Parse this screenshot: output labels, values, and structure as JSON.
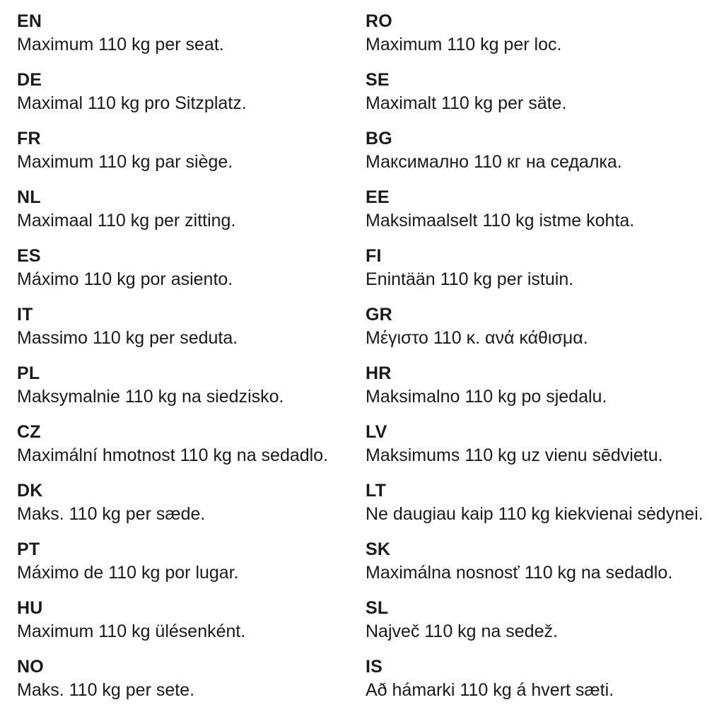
{
  "page": {
    "background_color": "#ffffff",
    "text_color": "#1a1a1a",
    "weight_value": "110 kg"
  },
  "columns": {
    "left": [
      {
        "code": "EN",
        "text": "Maximum 110 kg per seat."
      },
      {
        "code": "DE",
        "text": "Maximal 110 kg pro Sitzplatz."
      },
      {
        "code": "FR",
        "text": "Maximum 110 kg par siège."
      },
      {
        "code": "NL",
        "text": "Maximaal 110 kg per zitting."
      },
      {
        "code": "ES",
        "text": "Máximo 110 kg por asiento."
      },
      {
        "code": "IT",
        "text": "Massimo 110 kg per seduta."
      },
      {
        "code": "PL",
        "text": "Maksymalnie 110 kg na siedzisko."
      },
      {
        "code": "CZ",
        "text": "Maximální hmotnost 110 kg na sedadlo."
      },
      {
        "code": "DK",
        "text": "Maks. 110 kg per sæde."
      },
      {
        "code": "PT",
        "text": "Máximo de 110 kg por lugar."
      },
      {
        "code": "HU",
        "text": "Maximum 110 kg ülésenként."
      },
      {
        "code": "NO",
        "text": "Maks. 110 kg per sete."
      }
    ],
    "right": [
      {
        "code": "RO",
        "text": "Maximum 110 kg per loc."
      },
      {
        "code": "SE",
        "text": "Maximalt 110 kg per säte."
      },
      {
        "code": "BG",
        "text": "Максимално 110 кг на седалка."
      },
      {
        "code": "EE",
        "text": "Maksimaalselt 110 kg istme kohta."
      },
      {
        "code": "FI",
        "text": "Enintään 110 kg per istuin."
      },
      {
        "code": "GR",
        "text": "Μέγιστο 110 κ. ανά κάθισμα."
      },
      {
        "code": "HR",
        "text": "Maksimalno 110 kg po sjedalu."
      },
      {
        "code": "LV",
        "text": "Maksimums 110 kg uz vienu sēdvietu."
      },
      {
        "code": "LT",
        "text": "Ne daugiau kaip 110 kg kiekvienai sėdynei."
      },
      {
        "code": "SK",
        "text": "Maximálna nosnosť 110 kg na sedadlo."
      },
      {
        "code": "SL",
        "text": "Največ 110 kg na sedež."
      },
      {
        "code": "IS",
        "text": "Að hámarki 110 kg á hvert sæti."
      }
    ]
  }
}
